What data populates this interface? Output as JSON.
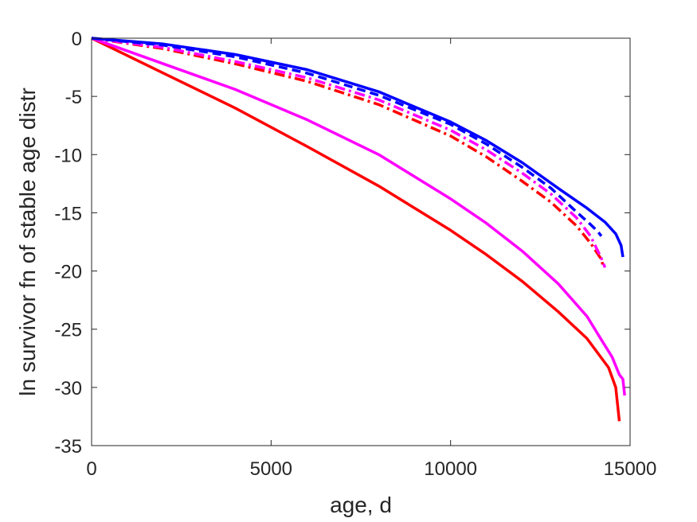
{
  "chart_data": {
    "type": "line",
    "title": "",
    "xlabel": "age, d",
    "ylabel": "ln survivor fn of stable age distr",
    "xlim": [
      0,
      15000
    ],
    "ylim": [
      -35,
      0
    ],
    "xticks": [
      0,
      5000,
      10000,
      15000
    ],
    "xtick_labels": [
      "0",
      "5000",
      "10000",
      "15000"
    ],
    "yticks": [
      0,
      -5,
      -10,
      -15,
      -20,
      -25,
      -30,
      -35
    ],
    "ytick_labels": [
      "0",
      "-5",
      "-10",
      "-15",
      "-20",
      "-25",
      "-30",
      "-35"
    ],
    "grid": false,
    "legend": "none",
    "series": [
      {
        "color": "#ff0000",
        "style": "solid",
        "x": [
          0,
          2000,
          4000,
          6000,
          8000,
          10000,
          11000,
          12000,
          13000,
          13800,
          14400,
          14600,
          14700
        ],
        "y": [
          0,
          -3.0,
          -6.0,
          -9.3,
          -12.7,
          -16.5,
          -18.6,
          -20.9,
          -23.5,
          -25.8,
          -28.3,
          -30.0,
          -32.9
        ]
      },
      {
        "color": "#ff00ff",
        "style": "solid",
        "x": [
          0,
          2000,
          4000,
          6000,
          8000,
          10000,
          11000,
          12000,
          13000,
          13800,
          14200,
          14500,
          14700,
          14800,
          14850
        ],
        "y": [
          0,
          -2.2,
          -4.4,
          -7.0,
          -10.0,
          -13.8,
          -15.9,
          -18.3,
          -21.1,
          -23.9,
          -25.9,
          -27.4,
          -28.9,
          -29.3,
          -30.7
        ]
      },
      {
        "color": "#ff0000",
        "style": "dashdot",
        "x": [
          0,
          2000,
          4000,
          6000,
          8000,
          10000,
          11000,
          12000,
          12800,
          13500,
          13900,
          14200,
          14250
        ],
        "y": [
          0,
          -0.9,
          -2.2,
          -3.7,
          -5.7,
          -8.4,
          -10.2,
          -12.3,
          -14.1,
          -16.1,
          -17.6,
          -19.0,
          -19.6
        ]
      },
      {
        "color": "#ff00ff",
        "style": "dashdot",
        "x": [
          0,
          2000,
          4000,
          6000,
          8000,
          10000,
          11000,
          12000,
          12800,
          13500,
          13900,
          14200,
          14300
        ],
        "y": [
          0,
          -0.8,
          -2.0,
          -3.4,
          -5.3,
          -7.9,
          -9.6,
          -11.6,
          -13.4,
          -15.4,
          -17.0,
          -18.9,
          -19.7
        ]
      },
      {
        "color": "#0000ff",
        "style": "dashed",
        "x": [
          0,
          2000,
          4000,
          6000,
          8000,
          10000,
          11000,
          12000,
          12800,
          13500,
          13900,
          14100,
          14200
        ],
        "y": [
          0,
          -0.6,
          -1.6,
          -3.0,
          -4.9,
          -7.4,
          -9.1,
          -11.1,
          -12.9,
          -14.9,
          -16.0,
          -16.6,
          -17.0
        ]
      },
      {
        "color": "#0000ff",
        "style": "solid",
        "x": [
          0,
          2000,
          4000,
          6000,
          8000,
          10000,
          11000,
          12000,
          13000,
          13800,
          14300,
          14600,
          14750,
          14800
        ],
        "y": [
          0,
          -0.5,
          -1.4,
          -2.7,
          -4.6,
          -7.2,
          -8.8,
          -10.7,
          -12.9,
          -14.6,
          -15.8,
          -16.8,
          -17.8,
          -18.8
        ]
      }
    ]
  }
}
